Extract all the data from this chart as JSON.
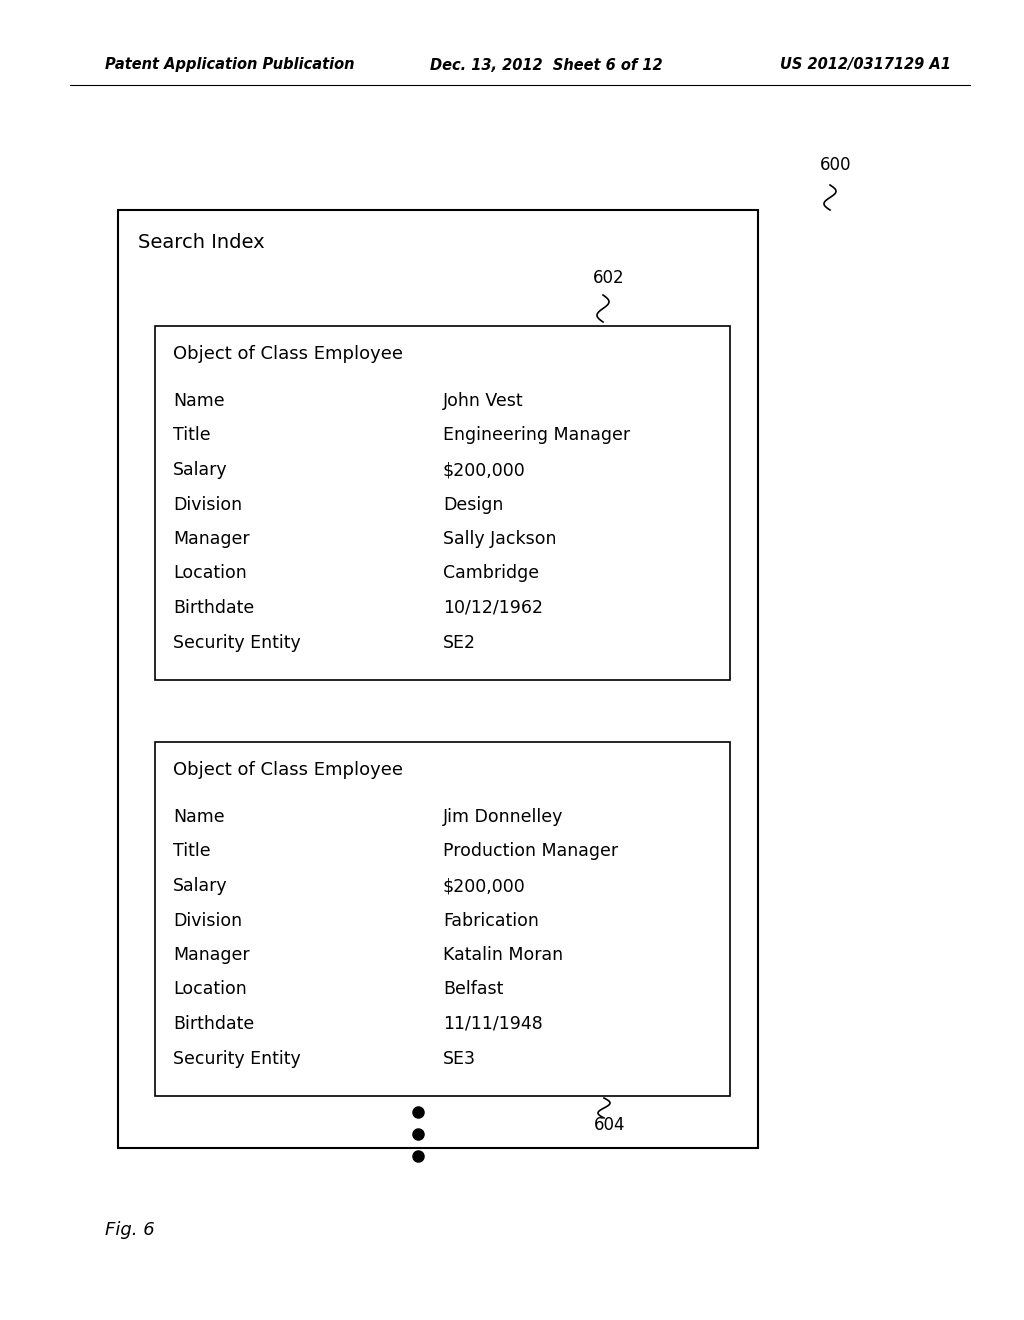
{
  "header_left": "Patent Application Publication",
  "header_mid": "Dec. 13, 2012  Sheet 6 of 12",
  "header_right": "US 2012/0317129 A1",
  "header_fontsize": 10.5,
  "fig_caption": "Fig. 6",
  "outer_box_label": "Search Index",
  "outer_label_num": "600",
  "inner1_label_num": "602",
  "dots_label_num": "604",
  "object1_title": "Object of Class Employee",
  "object1_fields": [
    "Name",
    "Title",
    "Salary",
    "Division",
    "Manager",
    "Location",
    "Birthdate",
    "Security Entity"
  ],
  "object1_values": [
    "John Vest",
    "Engineering Manager",
    "$200,000",
    "Design",
    "Sally Jackson",
    "Cambridge",
    "10/12/1962",
    "SE2"
  ],
  "object2_title": "Object of Class Employee",
  "object2_fields": [
    "Name",
    "Title",
    "Salary",
    "Division",
    "Manager",
    "Location",
    "Birthdate",
    "Security Entity"
  ],
  "object2_values": [
    "Jim Donnelley",
    "Production Manager",
    "$200,000",
    "Fabrication",
    "Katalin Moran",
    "Belfast",
    "11/11/1948",
    "SE3"
  ],
  "bg_color": "#ffffff",
  "text_color": "#000000",
  "box_color": "#000000",
  "title_fontsize": 13,
  "field_fontsize": 12.5,
  "label_fontsize": 12
}
